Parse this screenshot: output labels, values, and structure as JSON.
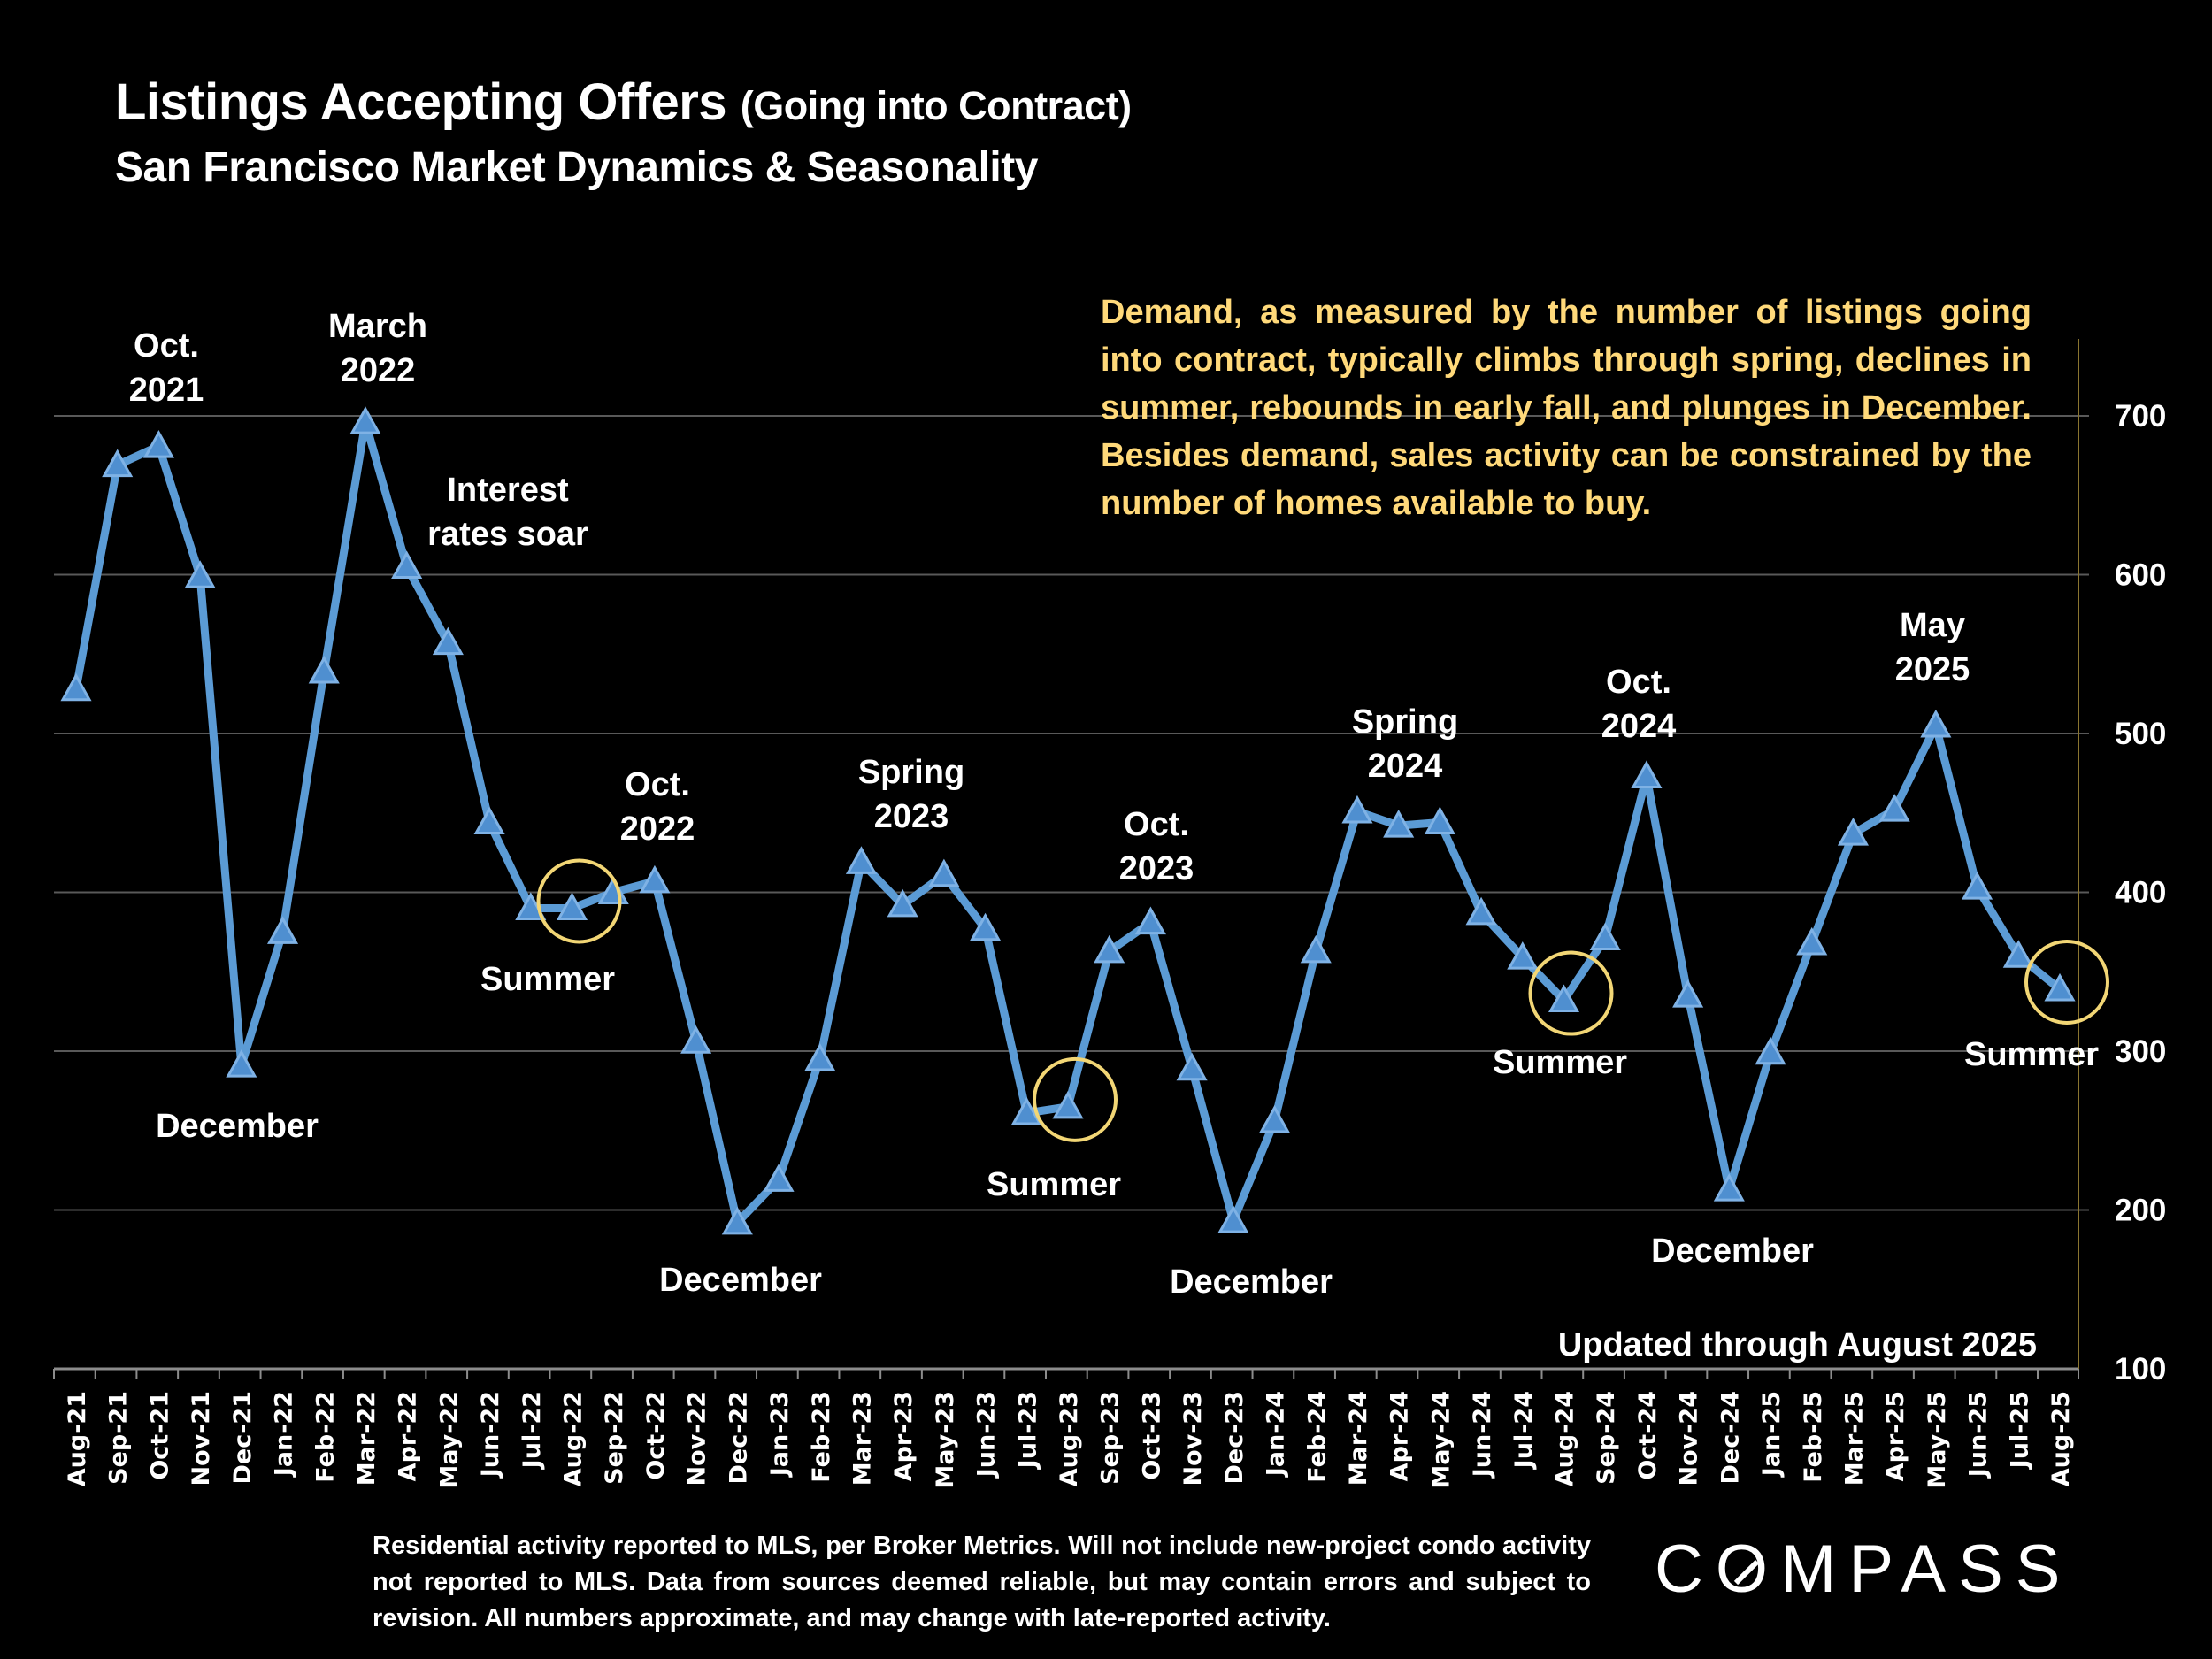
{
  "header": {
    "title": "Listings Accepting Offers",
    "title_suffix": "(Going into Contract)",
    "subtitle": "San Francisco Market Dynamics & Seasonality"
  },
  "callout": "Demand, as measured by the number of listings going into contract, typically climbs through spring, declines in summer, rebounds in early fall, and plunges in December.  Besides demand, sales activity can be constrained by the number of homes available to  buy.",
  "updated_note": "Updated through August 2025",
  "footer": "Residential activity reported to MLS, per Broker Metrics. Will not include new-project condo activity not reported to MLS. Data from sources deemed reliable, but may contain errors and subject to revision. All numbers approximate, and may change with late-reported activity.",
  "logo": "COMPASS",
  "colors": {
    "line": "#5b9bd5",
    "callout": "#ffd97a",
    "highlight_circle": "#f2d675",
    "background": "#000000",
    "grid": "#595959",
    "right_axis": "#8a7530"
  },
  "chart_data": {
    "type": "line",
    "marker": "triangle",
    "y_axis_side": "right",
    "ylim": [
      100,
      750
    ],
    "yticks": [
      100,
      200,
      300,
      400,
      500,
      600,
      700
    ],
    "grid": true,
    "categories": [
      "Aug-21",
      "Sep-21",
      "Oct-21",
      "Nov-21",
      "Dec-21",
      "Jan-22",
      "Feb-22",
      "Mar-22",
      "Apr-22",
      "May-22",
      "Jun-22",
      "Jul-22",
      "Aug-22",
      "Sep-22",
      "Oct-22",
      "Nov-22",
      "Dec-22",
      "Jan-23",
      "Feb-23",
      "Mar-23",
      "Apr-23",
      "May-23",
      "Jun-23",
      "Jul-23",
      "Aug-23",
      "Sep-23",
      "Oct-23",
      "Nov-23",
      "Dec-23",
      "Jan-24",
      "Feb-24",
      "Mar-24",
      "Apr-24",
      "May-24",
      "Jun-24",
      "Jul-24",
      "Aug-24",
      "Sep-24",
      "Oct-24",
      "Nov-24",
      "Dec-24",
      "Jan-25",
      "Feb-25",
      "Mar-25",
      "Apr-25",
      "May-25",
      "Jun-25",
      "Jul-25",
      "Aug-25"
    ],
    "values": [
      528,
      669,
      681,
      599,
      291,
      375,
      539,
      696,
      605,
      557,
      444,
      390,
      390,
      400,
      407,
      306,
      192,
      219,
      295,
      419,
      392,
      411,
      377,
      261,
      265,
      363,
      381,
      289,
      193,
      256,
      363,
      451,
      442,
      444,
      387,
      359,
      332,
      371,
      473,
      335,
      213,
      299,
      368,
      437,
      452,
      505,
      403,
      360,
      339
    ],
    "annotations": [
      {
        "lines": [
          "Oct.",
          "2021"
        ],
        "category": "Oct-21"
      },
      {
        "lines": [
          "March",
          "2022"
        ],
        "category": "Mar-22"
      },
      {
        "lines": [
          "Interest",
          "rates soar"
        ],
        "category": "May-22"
      },
      {
        "lines": [
          "December"
        ],
        "category": "Dec-21"
      },
      {
        "lines": [
          "Summer"
        ],
        "category": "Aug-22",
        "circled": true
      },
      {
        "lines": [
          "Oct.",
          "2022"
        ],
        "category": "Oct-22"
      },
      {
        "lines": [
          "December"
        ],
        "category": "Dec-22"
      },
      {
        "lines": [
          "Spring",
          "2023"
        ],
        "category": "Apr-23"
      },
      {
        "lines": [
          "Summer"
        ],
        "category": "Aug-23",
        "circled": true
      },
      {
        "lines": [
          "Oct.",
          "2023"
        ],
        "category": "Oct-23"
      },
      {
        "lines": [
          "December"
        ],
        "category": "Dec-23"
      },
      {
        "lines": [
          "Spring",
          "2024"
        ],
        "category": "Apr-24"
      },
      {
        "lines": [
          "Summer"
        ],
        "category": "Aug-24",
        "circled": true
      },
      {
        "lines": [
          "Oct.",
          "2024"
        ],
        "category": "Oct-24"
      },
      {
        "lines": [
          "December"
        ],
        "category": "Dec-24"
      },
      {
        "lines": [
          "May",
          "2025"
        ],
        "category": "May-25"
      },
      {
        "lines": [
          "Summer"
        ],
        "category": "Aug-25",
        "circled": true
      }
    ]
  }
}
